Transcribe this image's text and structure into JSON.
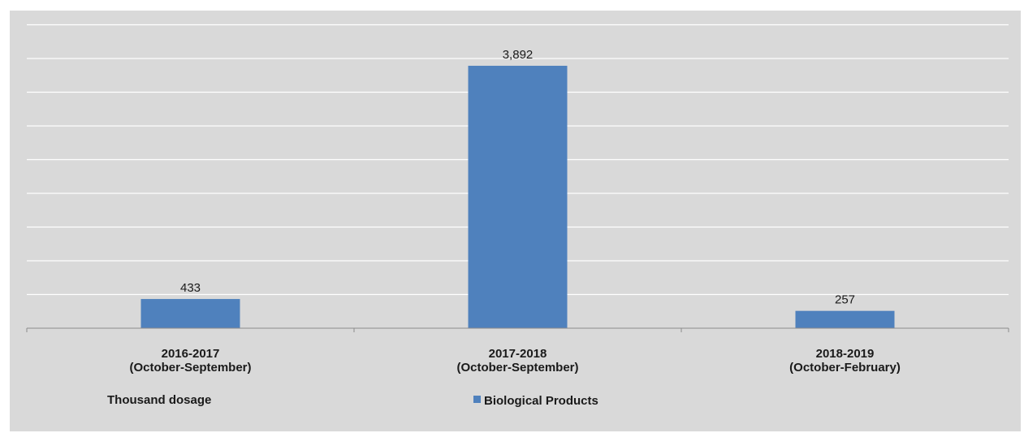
{
  "chart_data": {
    "type": "bar",
    "categories": [
      [
        "2016-2017",
        "(October-September)"
      ],
      [
        "2017-2018",
        "(October-September)"
      ],
      [
        "2018-2019",
        "(October-February)"
      ]
    ],
    "series": [
      {
        "name": "Biological Products",
        "values": [
          433,
          3892,
          257
        ],
        "value_labels": [
          "433",
          "3,892",
          "257"
        ],
        "color": "#4f81bd"
      }
    ],
    "ylim": [
      0,
      4500
    ],
    "gridline_step": 500,
    "grid": true,
    "unit_label": "Thousand dosage",
    "legend_position": "bottom",
    "title": "",
    "xlabel": "",
    "ylabel": ""
  }
}
